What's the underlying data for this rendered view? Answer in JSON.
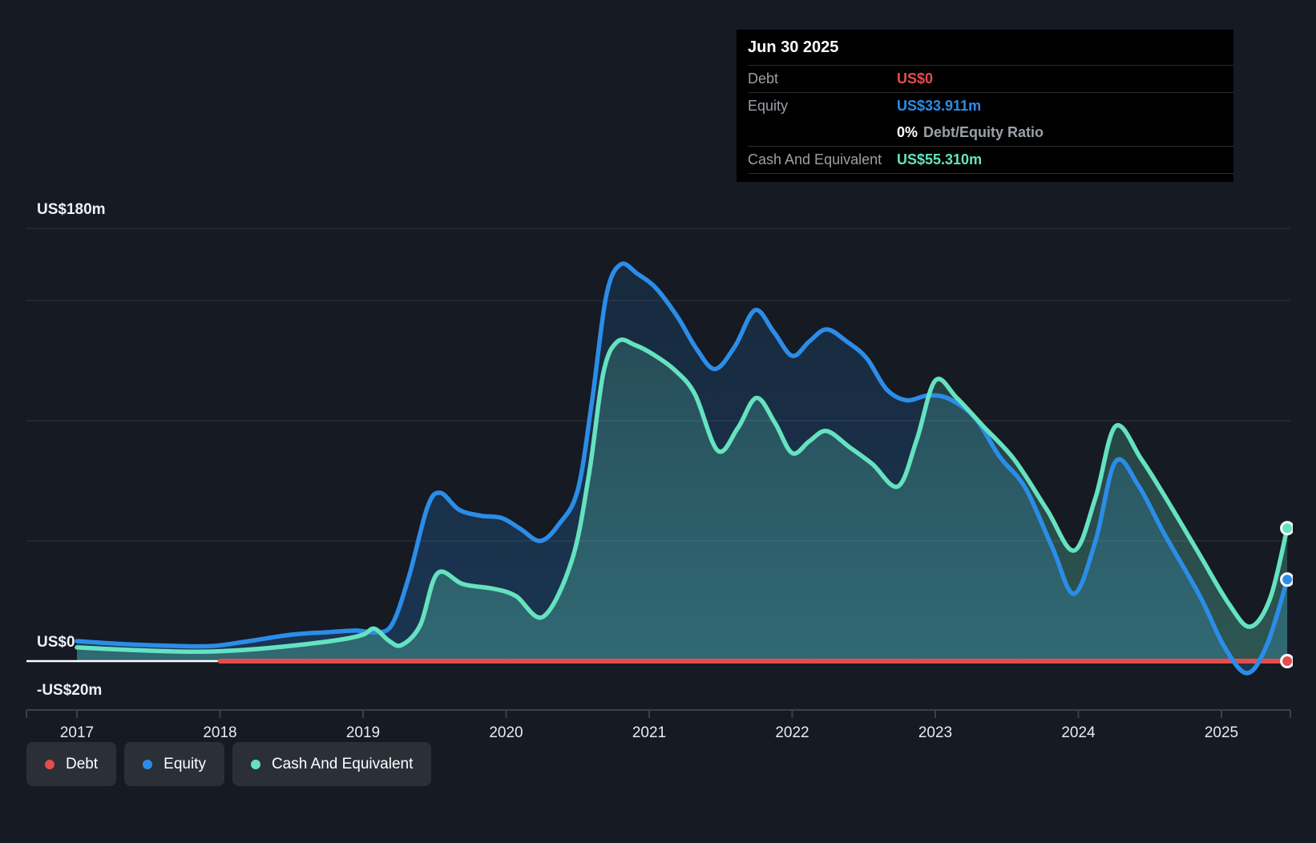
{
  "tooltip": {
    "date": "Jun 30 2025",
    "debt_label": "Debt",
    "debt_value": "US$0",
    "equity_label": "Equity",
    "equity_value": "US$33.911m",
    "ratio_value": "0%",
    "ratio_label": "Debt/Equity Ratio",
    "cash_label": "Cash And Equivalent",
    "cash_value": "US$55.310m"
  },
  "legend": {
    "items": [
      {
        "label": "Debt",
        "color": "#e74c4c"
      },
      {
        "label": "Equity",
        "color": "#2b8de8"
      },
      {
        "label": "Cash And Equivalent",
        "color": "#65e2c0"
      }
    ]
  },
  "colors": {
    "background": "#151a23",
    "grid": "#272d37",
    "axis": "#39414b",
    "zero_line": "#ffffff",
    "debt": "#e74c4c",
    "equity": "#2b8de8",
    "cash": "#65e2c0",
    "tooltip_bg": "#000000",
    "muted_text": "#9aa0a6",
    "legend_pill_bg": "#2a2f38"
  },
  "chart_data": {
    "type": "area",
    "y_unit": "US$ millions",
    "x_domain": [
      2017,
      2025.5
    ],
    "ylim": [
      -20,
      180
    ],
    "grid": "on",
    "legend_position": "bottom-left",
    "y_axis_labels": [
      {
        "label": "US$180m",
        "value": 180
      },
      {
        "label": "US$0",
        "value": 0
      },
      {
        "label": "-US$20m",
        "value": -20
      }
    ],
    "gridline_values": [
      180,
      150,
      100,
      50
    ],
    "x_ticks": [
      2017,
      2018,
      2019,
      2020,
      2021,
      2022,
      2023,
      2024,
      2025
    ],
    "series": [
      {
        "name": "Debt",
        "color": "#e74c4c",
        "end_value": 0,
        "points": [
          [
            2018.0,
            0
          ],
          [
            2025.46,
            0
          ]
        ]
      },
      {
        "name": "Equity",
        "color": "#2b8de8",
        "end_value": 33.911,
        "points": [
          [
            2017.0,
            8.3
          ],
          [
            2017.35,
            7
          ],
          [
            2017.7,
            6.3
          ],
          [
            2017.95,
            6.3
          ],
          [
            2018.2,
            8.3
          ],
          [
            2018.5,
            11
          ],
          [
            2018.75,
            12
          ],
          [
            2018.95,
            12.7
          ],
          [
            2019.08,
            12
          ],
          [
            2019.2,
            15
          ],
          [
            2019.32,
            35
          ],
          [
            2019.45,
            64
          ],
          [
            2019.54,
            70
          ],
          [
            2019.67,
            63
          ],
          [
            2019.82,
            60.5
          ],
          [
            2019.97,
            59.5
          ],
          [
            2020.1,
            55
          ],
          [
            2020.24,
            50
          ],
          [
            2020.37,
            57
          ],
          [
            2020.5,
            71
          ],
          [
            2020.6,
            108
          ],
          [
            2020.7,
            152
          ],
          [
            2020.8,
            165
          ],
          [
            2020.92,
            161
          ],
          [
            2021.05,
            155
          ],
          [
            2021.2,
            143
          ],
          [
            2021.33,
            130
          ],
          [
            2021.46,
            121.5
          ],
          [
            2021.6,
            131
          ],
          [
            2021.74,
            146
          ],
          [
            2021.87,
            137
          ],
          [
            2022.0,
            127
          ],
          [
            2022.12,
            133
          ],
          [
            2022.24,
            138
          ],
          [
            2022.38,
            133
          ],
          [
            2022.52,
            126
          ],
          [
            2022.66,
            113
          ],
          [
            2022.8,
            108.5
          ],
          [
            2022.95,
            110.5
          ],
          [
            2023.1,
            109
          ],
          [
            2023.28,
            101
          ],
          [
            2023.45,
            85
          ],
          [
            2023.63,
            72
          ],
          [
            2023.82,
            47
          ],
          [
            2023.97,
            28
          ],
          [
            2024.12,
            50
          ],
          [
            2024.26,
            83
          ],
          [
            2024.42,
            73
          ],
          [
            2024.6,
            53
          ],
          [
            2024.85,
            27
          ],
          [
            2025.02,
            6
          ],
          [
            2025.18,
            -5
          ],
          [
            2025.32,
            7
          ],
          [
            2025.46,
            33.911
          ]
        ]
      },
      {
        "name": "Cash And Equivalent",
        "color": "#65e2c0",
        "end_value": 55.31,
        "points": [
          [
            2017.0,
            5.7
          ],
          [
            2017.35,
            4.7
          ],
          [
            2017.7,
            4
          ],
          [
            2017.95,
            4
          ],
          [
            2018.25,
            5
          ],
          [
            2018.55,
            6.7
          ],
          [
            2018.85,
            9
          ],
          [
            2019.0,
            11
          ],
          [
            2019.08,
            13.5
          ],
          [
            2019.18,
            8.5
          ],
          [
            2019.27,
            6.7
          ],
          [
            2019.4,
            15
          ],
          [
            2019.52,
            36.5
          ],
          [
            2019.7,
            32
          ],
          [
            2019.92,
            30
          ],
          [
            2020.07,
            27
          ],
          [
            2020.26,
            18.5
          ],
          [
            2020.46,
            42
          ],
          [
            2020.58,
            78
          ],
          [
            2020.68,
            120
          ],
          [
            2020.78,
            133
          ],
          [
            2020.9,
            131.5
          ],
          [
            2021.03,
            127.5
          ],
          [
            2021.18,
            121
          ],
          [
            2021.32,
            111
          ],
          [
            2021.48,
            87.5
          ],
          [
            2021.62,
            97
          ],
          [
            2021.75,
            109.5
          ],
          [
            2021.88,
            99
          ],
          [
            2022.0,
            86.5
          ],
          [
            2022.12,
            91.5
          ],
          [
            2022.24,
            95.7
          ],
          [
            2022.4,
            89
          ],
          [
            2022.56,
            82
          ],
          [
            2022.74,
            72.7
          ],
          [
            2022.87,
            92
          ],
          [
            2023.0,
            116.7
          ],
          [
            2023.15,
            109.5
          ],
          [
            2023.33,
            98
          ],
          [
            2023.55,
            84
          ],
          [
            2023.78,
            63
          ],
          [
            2023.97,
            46
          ],
          [
            2024.12,
            68
          ],
          [
            2024.26,
            97.7
          ],
          [
            2024.44,
            84
          ],
          [
            2024.62,
            67
          ],
          [
            2024.85,
            44
          ],
          [
            2025.05,
            24
          ],
          [
            2025.2,
            14.3
          ],
          [
            2025.34,
            26
          ],
          [
            2025.46,
            55.31
          ]
        ]
      }
    ]
  }
}
